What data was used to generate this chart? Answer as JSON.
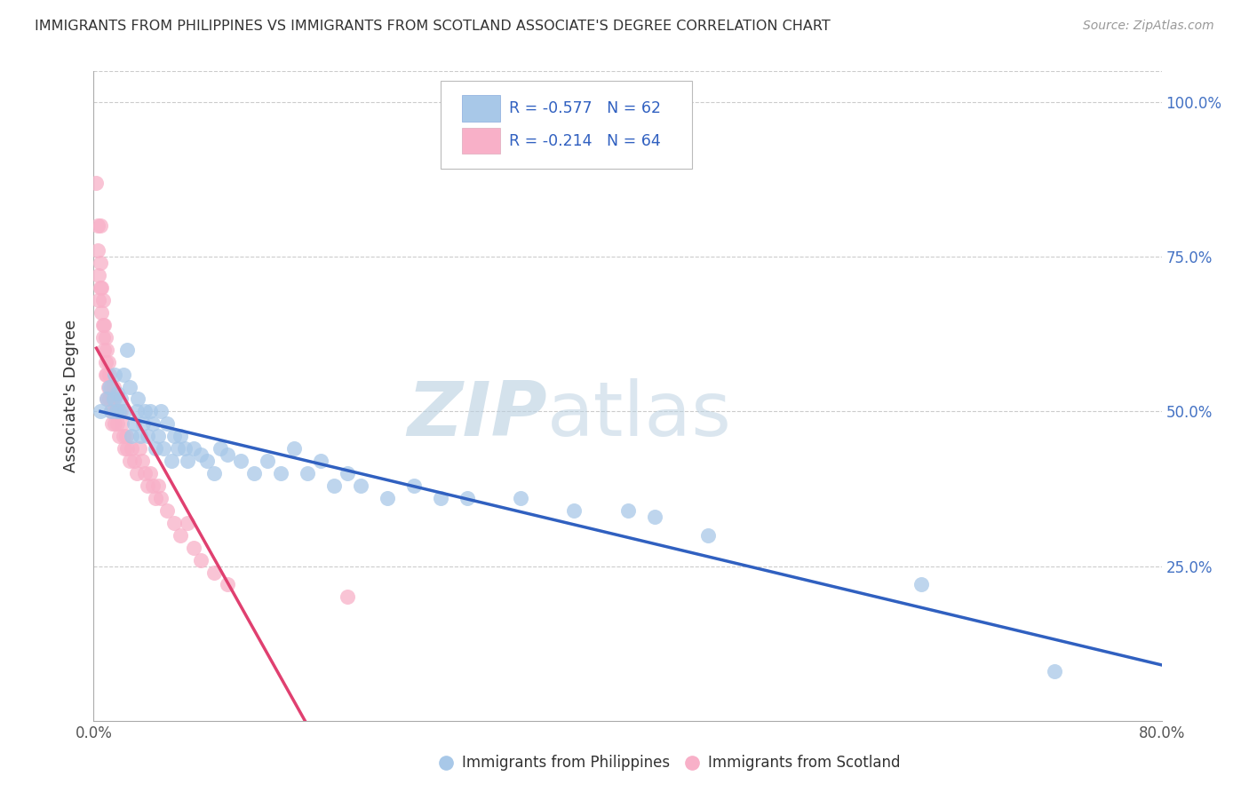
{
  "title": "IMMIGRANTS FROM PHILIPPINES VS IMMIGRANTS FROM SCOTLAND ASSOCIATE'S DEGREE CORRELATION CHART",
  "source": "Source: ZipAtlas.com",
  "ylabel": "Associate's Degree",
  "legend_blue_r": "-0.577",
  "legend_blue_n": "62",
  "legend_pink_r": "-0.214",
  "legend_pink_n": "64",
  "legend_label_blue": "Immigrants from Philippines",
  "legend_label_pink": "Immigrants from Scotland",
  "blue_color": "#a8c8e8",
  "blue_line_color": "#3060c0",
  "pink_color": "#f8b0c8",
  "pink_line_color": "#e04070",
  "xlim": [
    0.0,
    0.8
  ],
  "ylim": [
    0.0,
    1.05
  ],
  "blue_scatter_x": [
    0.005,
    0.01,
    0.012,
    0.013,
    0.015,
    0.016,
    0.017,
    0.018,
    0.019,
    0.02,
    0.022,
    0.023,
    0.025,
    0.027,
    0.028,
    0.03,
    0.032,
    0.033,
    0.035,
    0.037,
    0.038,
    0.04,
    0.042,
    0.044,
    0.046,
    0.048,
    0.05,
    0.052,
    0.055,
    0.058,
    0.06,
    0.063,
    0.065,
    0.068,
    0.07,
    0.075,
    0.08,
    0.085,
    0.09,
    0.095,
    0.1,
    0.11,
    0.12,
    0.13,
    0.14,
    0.15,
    0.16,
    0.17,
    0.18,
    0.19,
    0.2,
    0.22,
    0.24,
    0.26,
    0.28,
    0.32,
    0.36,
    0.4,
    0.42,
    0.46,
    0.62,
    0.72
  ],
  "blue_scatter_y": [
    0.5,
    0.52,
    0.54,
    0.5,
    0.52,
    0.56,
    0.5,
    0.53,
    0.5,
    0.52,
    0.56,
    0.5,
    0.6,
    0.54,
    0.46,
    0.48,
    0.5,
    0.52,
    0.46,
    0.48,
    0.5,
    0.46,
    0.5,
    0.48,
    0.44,
    0.46,
    0.5,
    0.44,
    0.48,
    0.42,
    0.46,
    0.44,
    0.46,
    0.44,
    0.42,
    0.44,
    0.43,
    0.42,
    0.4,
    0.44,
    0.43,
    0.42,
    0.4,
    0.42,
    0.4,
    0.44,
    0.4,
    0.42,
    0.38,
    0.4,
    0.38,
    0.36,
    0.38,
    0.36,
    0.36,
    0.36,
    0.34,
    0.34,
    0.33,
    0.3,
    0.22,
    0.08
  ],
  "pink_scatter_x": [
    0.002,
    0.003,
    0.003,
    0.004,
    0.004,
    0.005,
    0.005,
    0.005,
    0.006,
    0.006,
    0.007,
    0.007,
    0.007,
    0.008,
    0.008,
    0.009,
    0.009,
    0.009,
    0.01,
    0.01,
    0.01,
    0.011,
    0.011,
    0.012,
    0.012,
    0.013,
    0.013,
    0.014,
    0.014,
    0.015,
    0.015,
    0.016,
    0.016,
    0.017,
    0.018,
    0.019,
    0.02,
    0.021,
    0.022,
    0.023,
    0.024,
    0.025,
    0.027,
    0.028,
    0.03,
    0.032,
    0.034,
    0.036,
    0.038,
    0.04,
    0.042,
    0.044,
    0.046,
    0.048,
    0.05,
    0.055,
    0.06,
    0.065,
    0.07,
    0.075,
    0.08,
    0.09,
    0.1,
    0.19
  ],
  "pink_scatter_y": [
    0.87,
    0.8,
    0.76,
    0.72,
    0.68,
    0.8,
    0.74,
    0.7,
    0.66,
    0.7,
    0.64,
    0.68,
    0.62,
    0.64,
    0.6,
    0.62,
    0.58,
    0.56,
    0.6,
    0.56,
    0.52,
    0.58,
    0.54,
    0.56,
    0.52,
    0.54,
    0.5,
    0.52,
    0.48,
    0.54,
    0.5,
    0.52,
    0.48,
    0.5,
    0.48,
    0.46,
    0.5,
    0.48,
    0.46,
    0.44,
    0.46,
    0.44,
    0.42,
    0.44,
    0.42,
    0.4,
    0.44,
    0.42,
    0.4,
    0.38,
    0.4,
    0.38,
    0.36,
    0.38,
    0.36,
    0.34,
    0.32,
    0.3,
    0.32,
    0.28,
    0.26,
    0.24,
    0.22,
    0.2
  ],
  "watermark_zip": "ZIP",
  "watermark_atlas": "atlas",
  "background_color": "#ffffff",
  "grid_color": "#cccccc",
  "title_color": "#333333",
  "right_axis_color": "#4472c4",
  "bottom_axis_color": "#555555",
  "yticks": [
    0.25,
    0.5,
    0.75,
    1.0
  ],
  "ytick_labels": [
    "25.0%",
    "50.0%",
    "75.0%",
    "100.0%"
  ],
  "xtick_labels": [
    "0.0%",
    "80.0%"
  ]
}
